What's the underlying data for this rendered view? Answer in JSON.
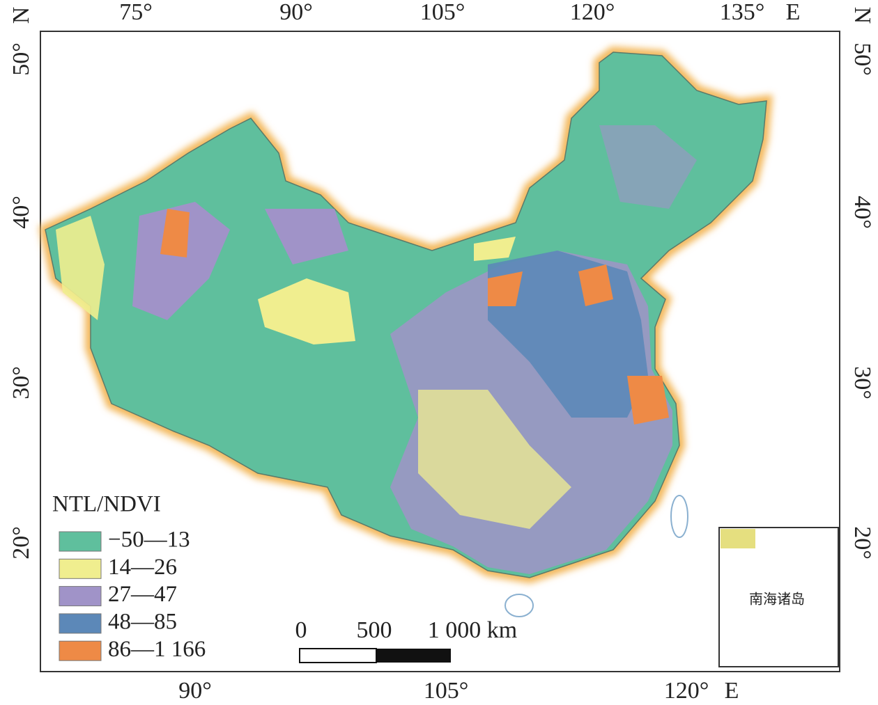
{
  "map": {
    "top_labels": [
      "75°",
      "90°",
      "105°",
      "120°",
      "135°",
      "E"
    ],
    "left_labels": [
      "N",
      "50°",
      "40°",
      "30°",
      "20°"
    ],
    "right_labels": [
      "N",
      "50°",
      "40°",
      "30°",
      "20°"
    ],
    "bottom_labels": [
      "90°",
      "105°",
      "120°",
      "E"
    ],
    "legend": {
      "title": "NTL/NDVI",
      "items": [
        {
          "label": "−50—13",
          "color": "#5fbf9d"
        },
        {
          "label": "14—26",
          "color": "#f0ee8f"
        },
        {
          "label": "27—47",
          "color": "#a093c8"
        },
        {
          "label": "48—85",
          "color": "#5c88b8"
        },
        {
          "label": "86—1 166",
          "color": "#ee8a46"
        }
      ]
    },
    "scale_bar": {
      "labels": [
        "0",
        "500",
        "1 000 km"
      ]
    },
    "inset": {
      "label": "南海诸岛"
    }
  }
}
